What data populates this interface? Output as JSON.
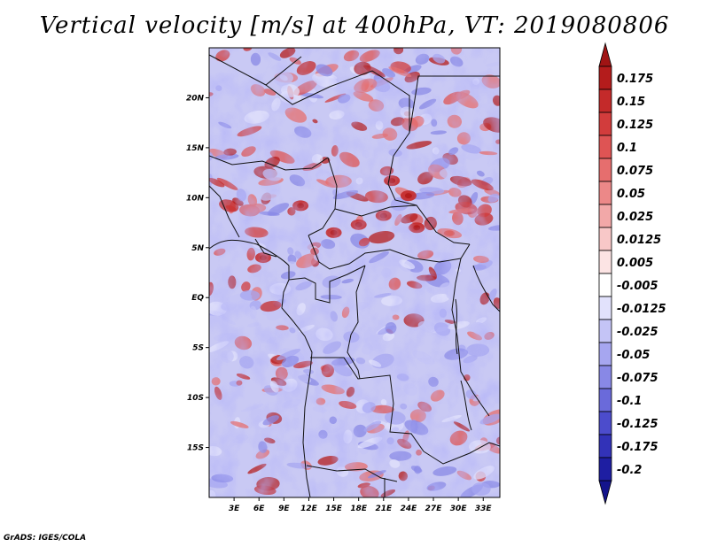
{
  "title": "Vertical velocity [m/s] at 400hPa, VT: 2019080806",
  "credit": "GrADS: IGES/COLA",
  "map": {
    "region": "Central Africa",
    "variable": "Vertical velocity",
    "units": "m/s",
    "level": "400hPa",
    "valid_time": "2019080806",
    "lat_range": [
      -20,
      25
    ],
    "lon_range": [
      0,
      35
    ],
    "lat_ticks": [
      {
        "value": 20,
        "label": "20N"
      },
      {
        "value": 15,
        "label": "15N"
      },
      {
        "value": 10,
        "label": "10N"
      },
      {
        "value": 5,
        "label": "5N"
      },
      {
        "value": 0,
        "label": "EQ"
      },
      {
        "value": -5,
        "label": "5S"
      },
      {
        "value": -10,
        "label": "10S"
      },
      {
        "value": -15,
        "label": "15S"
      }
    ],
    "lon_ticks": [
      {
        "value": 3,
        "label": "3E"
      },
      {
        "value": 6,
        "label": "6E"
      },
      {
        "value": 9,
        "label": "9E"
      },
      {
        "value": 12,
        "label": "12E"
      },
      {
        "value": 15,
        "label": "15E"
      },
      {
        "value": 18,
        "label": "18E"
      },
      {
        "value": 21,
        "label": "21E"
      },
      {
        "value": 24,
        "label": "24E"
      },
      {
        "value": 27,
        "label": "27E"
      },
      {
        "value": 30,
        "label": "30E"
      },
      {
        "value": 33,
        "label": "33E"
      }
    ]
  },
  "colorbar": {
    "levels": [
      {
        "label": "0.175",
        "color": "#b41c1c"
      },
      {
        "label": "0.15",
        "color": "#c42a2a"
      },
      {
        "label": "0.125",
        "color": "#d23c3c"
      },
      {
        "label": "0.1",
        "color": "#de5454"
      },
      {
        "label": "0.075",
        "color": "#e66e6e"
      },
      {
        "label": "0.05",
        "color": "#ec8888"
      },
      {
        "label": "0.025",
        "color": "#f2a8a8"
      },
      {
        "label": "0.0125",
        "color": "#f8c8c8"
      },
      {
        "label": "0.005",
        "color": "#fce4e4"
      },
      {
        "label": "-0.005",
        "color": "#ffffff"
      },
      {
        "label": "-0.0125",
        "color": "#e2e2fc"
      },
      {
        "label": "-0.025",
        "color": "#c4c4f6"
      },
      {
        "label": "-0.05",
        "color": "#a6a6f0"
      },
      {
        "label": "-0.075",
        "color": "#8888e6"
      },
      {
        "label": "-0.1",
        "color": "#6a6ada"
      },
      {
        "label": "-0.125",
        "color": "#4c4ccc"
      },
      {
        "label": "-0.175",
        "color": "#3232b8"
      },
      {
        "label": "-0.2",
        "color": "#1e1ea2"
      }
    ],
    "top_arrow_color": "#a01414",
    "bottom_arrow_color": "#14148c"
  }
}
